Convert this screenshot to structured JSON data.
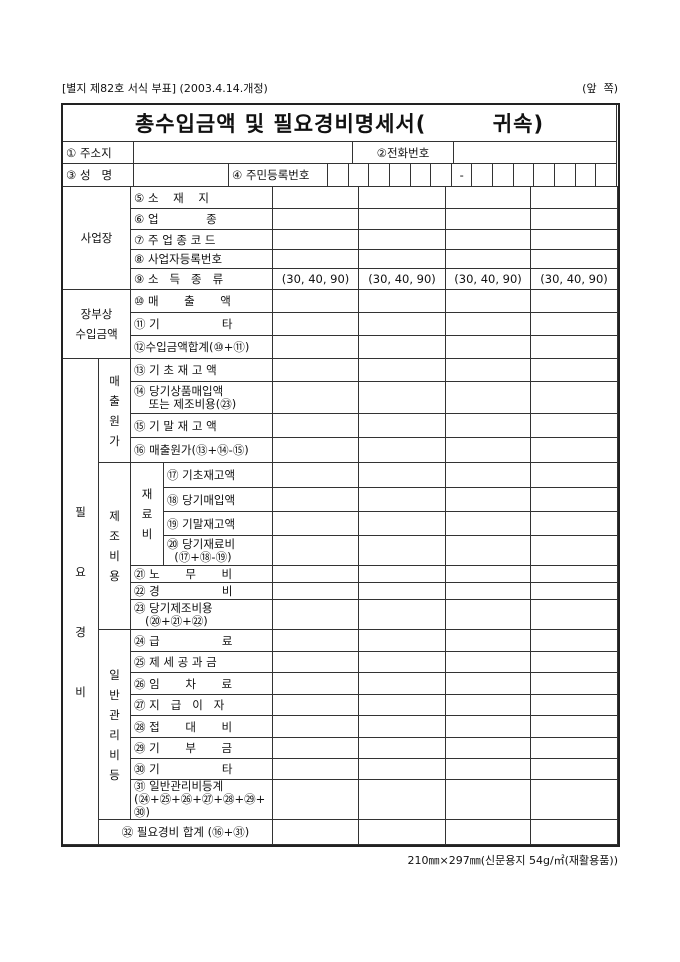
{
  "header": {
    "form_ref": "[별지 제82호 서식 부표] (2003.4.14.개정)",
    "side": "(앞  쪽)",
    "title": "총수입금액 및 필요경비명세서(        귀속)"
  },
  "info": {
    "address_label": "① 주소지",
    "phone_label": "②전화번호",
    "name_label": "③ 성   명",
    "rrn_label": "④ 주민등록번호",
    "rrn_hyphen": "-"
  },
  "groups": {
    "business": "사업장",
    "book_income": "장부상\n수입금액",
    "expense": "필\n\n\n요\n\n\n경\n\n\n비",
    "cogs": "매\n출\n원\n가",
    "mfg": "제\n조\n비\n용",
    "material": "재\n료\n비",
    "admin": "일\n반\n관\n리\n비\n등"
  },
  "rows": [
    {
      "label": "⑤ 소    재    지"
    },
    {
      "label": "⑥ 업             종"
    },
    {
      "label": "⑦ 주 업 종 코 드"
    },
    {
      "label": "⑧ 사업자등록번호"
    },
    {
      "label": "⑨ 소   득   종   류",
      "values": [
        "(30, 40, 90)",
        "(30, 40, 90)",
        "(30, 40, 90)",
        "(30, 40, 90)"
      ]
    },
    {
      "label": "⑩ 매       출       액"
    },
    {
      "label": "⑪ 기                 타"
    },
    {
      "label": "⑫수입금액합계(⑩+⑪)"
    },
    {
      "label": "⑬ 기 초 재 고 액"
    },
    {
      "label": "⑭ 당기상품매입액\n    또는 제조비용(㉓)"
    },
    {
      "label": "⑮ 기 말 재 고 액"
    },
    {
      "label": "⑯ 매출원가(⑬+⑭-⑮)"
    },
    {
      "label": "⑰ 기초재고액"
    },
    {
      "label": "⑱ 당기매입액"
    },
    {
      "label": "⑲ 기말재고액"
    },
    {
      "label": "⑳ 당기재료비\n  (⑰+⑱-⑲)"
    },
    {
      "label": "㉑ 노       무       비"
    },
    {
      "label": "㉒ 경                 비"
    },
    {
      "label": "㉓ 당기제조비용\n   (⑳+㉑+㉒)"
    },
    {
      "label": "㉔ 급                 료"
    },
    {
      "label": "㉕ 제 세 공 과 금"
    },
    {
      "label": "㉖ 임       차       료"
    },
    {
      "label": "㉗ 지   급   이   자"
    },
    {
      "label": "㉘ 접       대       비"
    },
    {
      "label": "㉙ 기       부       금"
    },
    {
      "label": "㉚ 기                 타"
    },
    {
      "label": "㉛ 일반관리비등계\n(㉔+㉕+㉖+㉗+㉘+㉙+\n㉚)"
    },
    {
      "label": "㉜ 필요경비 합계 (⑯+㉛)"
    }
  ],
  "footer": "210㎜×297㎜(신문용지 54g/㎡(재활용품))"
}
